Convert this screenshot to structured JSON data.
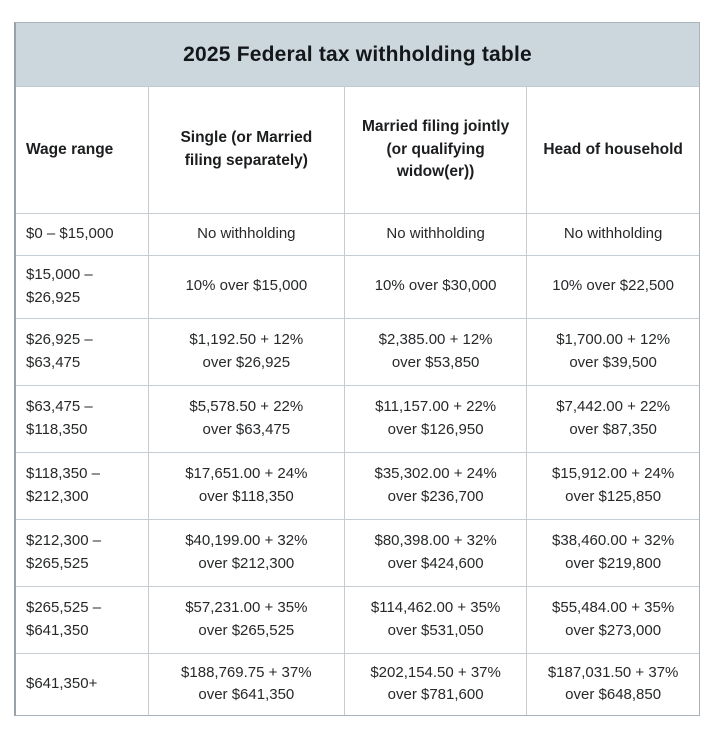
{
  "table": {
    "title": "2025 Federal tax withholding table",
    "columns": [
      "Wage range",
      "Single (or Married\nfiling separately)",
      "Married filing jointly\n(or qualifying\nwidow(er))",
      "Head of household"
    ],
    "rows": [
      [
        "$0 – $15,000",
        "No withholding",
        "No withholding",
        "No withholding"
      ],
      [
        "$15,000 –\n$26,925",
        "10% over $15,000",
        "10% over $30,000",
        "10% over $22,500"
      ],
      [
        "$26,925 –\n$63,475",
        "$1,192.50 + 12%\nover $26,925",
        "$2,385.00 + 12%\nover $53,850",
        "$1,700.00 + 12%\nover $39,500"
      ],
      [
        "$63,475 –\n$118,350",
        "$5,578.50 + 22%\nover $63,475",
        "$11,157.00 + 22%\nover $126,950",
        "$7,442.00 + 22%\nover $87,350"
      ],
      [
        "$118,350 –\n$212,300",
        "$17,651.00 + 24%\nover $118,350",
        "$35,302.00 + 24%\nover $236,700",
        "$15,912.00 + 24%\nover $125,850"
      ],
      [
        "$212,300 –\n$265,525",
        "$40,199.00 + 32%\nover $212,300",
        "$80,398.00 + 32%\nover $424,600",
        "$38,460.00 + 32%\nover $219,800"
      ],
      [
        "$265,525 –\n$641,350",
        "$57,231.00 + 35%\nover $265,525",
        "$114,462.00 + 35%\nover $531,050",
        "$55,484.00 + 35%\nover $273,000"
      ],
      [
        "$641,350+",
        "$188,769.75 + 37%\nover $641,350",
        "$202,154.50 + 37%\nover $781,600",
        "$187,031.50 + 37%\nover $648,850"
      ]
    ],
    "colors": {
      "title_background": "#ccd6dd",
      "inner_border": "#c5cdd3",
      "outer_border": "#aab3b9",
      "text": "#26282a",
      "page_background": "#ffffff"
    }
  }
}
